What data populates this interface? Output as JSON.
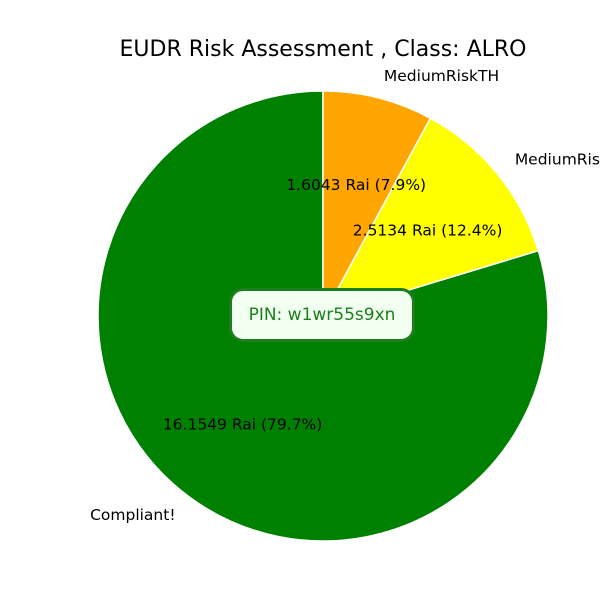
{
  "chart_data": {
    "type": "pie",
    "title": "EUDR Risk Assessment , Class: ALRO",
    "slices": [
      {
        "name": "Compliant!",
        "value": 16.1549,
        "percent": 79.7,
        "label": "16.1549 Rai (79.7%)",
        "color": "#008000"
      },
      {
        "name": "MediumRisk",
        "value": 2.5134,
        "percent": 12.4,
        "label": "2.5134 Rai (12.4%)",
        "color": "#ffff00"
      },
      {
        "name": "MediumRiskTH",
        "value": 1.6043,
        "percent": 7.9,
        "label": "1.6043 Rai (7.9%)",
        "color": "#ffa500"
      }
    ],
    "start_angle_deg": 90,
    "direction": "counterclockwise",
    "edge_color": "#ffffff"
  },
  "pin": {
    "label": "PIN: w1wr55s9xn",
    "color": "#1e7e1e",
    "background": "#f0fff0"
  }
}
